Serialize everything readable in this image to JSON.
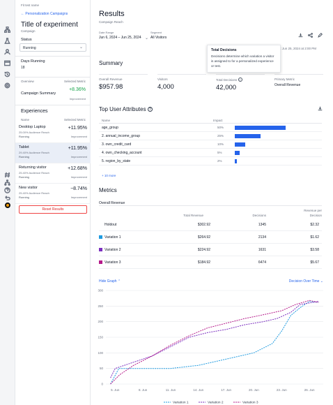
{
  "context": {
    "back_tag": "Fit test name",
    "back_link": "← Personalization Campaigns",
    "title": "Title of experiment",
    "subtitle": "Campaign",
    "status_label": "Status",
    "status_value": "Running",
    "days_label": "Days Running",
    "days_value": "18",
    "overview_label": "Overview",
    "selected_metric_label": "Selected Metric",
    "campaign_summary": "Campaign Summary",
    "campaign_value": "+8.36%",
    "campaign_sub": "Improvement",
    "experiences_title": "Experiences",
    "exp_col_name": "Name",
    "exp_col_metric": "Selected Metric",
    "experiences": [
      {
        "name": "Desktop Laptop",
        "sub": "25.00% Audience Reach",
        "status": "Running",
        "value": "+11.95%",
        "imp": "Improvement"
      },
      {
        "name": "Tablet",
        "sub": "29.40% Audience Reach",
        "status": "Running",
        "value": "+11.95%",
        "imp": "Improvement"
      },
      {
        "name": "Returning visitor",
        "sub": "25.40% Audience Reach",
        "status": "Running",
        "value": "+12.68%",
        "imp": "Improvement"
      },
      {
        "name": "New visitor",
        "sub": "25.40% Audience Reach",
        "status": "Running",
        "value": "−8.74%",
        "imp": "Improvement"
      }
    ],
    "reset_button": "Reset Results"
  },
  "main": {
    "title": "Results",
    "subtitle": "Campaign Reach",
    "date_label": "Date Range",
    "date_value": "Jun 6, 2024 – Jun 25, 2024",
    "segment_label": "Segment",
    "segment_value": "All Visitors",
    "updated": "d: Jun 25, 2024 at 2:00 PM",
    "tooltip_title": "Total Decisions",
    "tooltip_body": "Decisions determine which variation a visitor is assigned to for a personalized experience or test.",
    "summary_title": "Summary",
    "summary": [
      {
        "label": "Overall Revenue",
        "value": "$957.98"
      },
      {
        "label": "Visitors",
        "value": "4,000"
      },
      {
        "label": "Total Decisions",
        "value": "42,000"
      },
      {
        "label": "Primary Metric",
        "value": "Overall Revenue"
      }
    ],
    "attributes_title": "Top User Attributes",
    "attr_col_name": "Name",
    "attr_col_impact": "Impact",
    "attributes": [
      {
        "name": "age_group",
        "impact": "50%",
        "fraction": 0.5
      },
      {
        "name": "2. annual_income_group",
        "impact": "25%",
        "fraction": 0.25
      },
      {
        "name": "3. own_credit_card",
        "impact": "10%",
        "fraction": 0.1
      },
      {
        "name": "4. own_checking_account",
        "impact": "5%",
        "fraction": 0.05
      },
      {
        "name": "5. region_by_state",
        "impact": "2%",
        "fraction": 0.02
      }
    ],
    "attributes_more": "+ 10 more",
    "metrics_title": "Metrics",
    "metrics_section": "Overall Revenue",
    "metrics_cols": [
      "Total Revenue",
      "Decisions",
      "Revenue per Decision"
    ],
    "metrics_rows": [
      {
        "name": "Holdout",
        "color": "",
        "total": "$302.92",
        "decisions": "1345",
        "per": "$2.32"
      },
      {
        "name": "Variation 1",
        "color": "#1f9be0",
        "total": "$264.92",
        "decisions": "2134",
        "per": "$1.62"
      },
      {
        "name": "Variation 2",
        "color": "#7b2fbf",
        "total": "$224.92",
        "decisions": "1631",
        "per": "$3.58"
      },
      {
        "name": "Variation 3",
        "color": "#b51a8a",
        "total": "$184.92",
        "decisions": "6474",
        "per": "$5.67"
      }
    ],
    "graph_toggle": "Hide Graph ⌃",
    "graph_dropdown": "Decision Over Time ⌄"
  },
  "chart_data": {
    "type": "line",
    "x": [
      "5. Jun",
      "8. Jun",
      "11. Jun",
      "14. Jun",
      "17. Jun",
      "20. Jun",
      "23. Jun",
      "26. Jun"
    ],
    "yticks": [
      0,
      50,
      100,
      150,
      200,
      250,
      300
    ],
    "ylim": [
      0,
      300
    ],
    "series": [
      {
        "name": "Variation 1",
        "color": "#1f9be0",
        "points": [
          [
            4.5,
            0
          ],
          [
            5.4,
            50
          ],
          [
            6,
            50
          ],
          [
            8,
            50
          ],
          [
            11,
            50
          ],
          [
            14,
            60
          ],
          [
            17,
            80
          ],
          [
            20,
            100
          ],
          [
            22,
            130
          ],
          [
            23,
            170
          ],
          [
            24,
            220
          ],
          [
            25,
            245
          ],
          [
            26,
            265
          ],
          [
            27,
            262
          ]
        ]
      },
      {
        "name": "Variation 2",
        "color": "#7b2fbf",
        "points": [
          [
            4.5,
            20
          ],
          [
            5,
            50
          ],
          [
            7,
            70
          ],
          [
            9,
            90
          ],
          [
            11,
            120
          ],
          [
            13,
            150
          ],
          [
            15,
            165
          ],
          [
            17,
            175
          ],
          [
            19,
            190
          ],
          [
            21,
            200
          ],
          [
            22.5,
            210
          ],
          [
            24,
            230
          ],
          [
            25,
            255
          ],
          [
            26,
            260
          ],
          [
            27,
            265
          ]
        ]
      },
      {
        "name": "Variation 3",
        "color": "#b51a8a",
        "points": [
          [
            4.5,
            0
          ],
          [
            5.5,
            30
          ],
          [
            7,
            60
          ],
          [
            9,
            90
          ],
          [
            11,
            125
          ],
          [
            13,
            155
          ],
          [
            15,
            180
          ],
          [
            17,
            195
          ],
          [
            19,
            210
          ],
          [
            21,
            222
          ],
          [
            23,
            235
          ],
          [
            24.5,
            255
          ],
          [
            26,
            268
          ],
          [
            27,
            262
          ]
        ]
      }
    ]
  }
}
